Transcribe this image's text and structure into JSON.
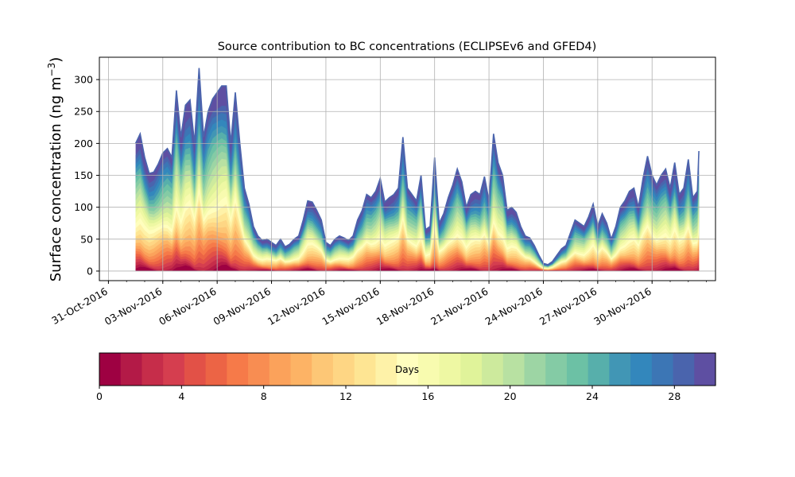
{
  "chart_data": {
    "type": "area",
    "title": "Source contribution to BC concentrations (ECLIPSEv6 and GFED4)",
    "ylabel": "Surface concentration (ng m",
    "ylabel_sup": "−3",
    "ylabel_close": ")",
    "xlabel": "",
    "ylim": [
      -15,
      335
    ],
    "xlim": [
      "2016-10-30T12:00",
      "2016-12-03T12:00"
    ],
    "y_ticks": [
      0,
      50,
      100,
      150,
      200,
      250,
      300
    ],
    "x_ticks": [
      "2016-10-31",
      "2016-11-03",
      "2016-11-06",
      "2016-11-09",
      "2016-11-12",
      "2016-11-15",
      "2016-11-18",
      "2016-11-21",
      "2016-11-24",
      "2016-11-27",
      "2016-11-30"
    ],
    "x_tick_labels": [
      "31-Oct-2016",
      "03-Nov-2016",
      "06-Nov-2016",
      "09-Nov-2016",
      "12-Nov-2016",
      "15-Nov-2016",
      "18-Nov-2016",
      "21-Nov-2016",
      "24-Nov-2016",
      "27-Nov-2016",
      "30-Nov-2016"
    ],
    "grid": true,
    "series": [
      {
        "values": [
          [
            "2016-11-01T12:00",
            200
          ],
          [
            "2016-11-01T18:00",
            215
          ],
          [
            "2016-11-02T00:00",
            178
          ],
          [
            "2016-11-02T06:00",
            153
          ],
          [
            "2016-11-02T12:00",
            155
          ],
          [
            "2016-11-02T18:00",
            168
          ],
          [
            "2016-11-03T00:00",
            185
          ],
          [
            "2016-11-03T06:00",
            192
          ],
          [
            "2016-11-03T12:00",
            178
          ],
          [
            "2016-11-03T18:00",
            283
          ],
          [
            "2016-11-04T00:00",
            210
          ],
          [
            "2016-11-04T06:00",
            260
          ],
          [
            "2016-11-04T12:00",
            268
          ],
          [
            "2016-11-04T18:00",
            200
          ],
          [
            "2016-11-05T00:00",
            318
          ],
          [
            "2016-11-05T06:00",
            210
          ],
          [
            "2016-11-05T12:00",
            250
          ],
          [
            "2016-11-05T18:00",
            270
          ],
          [
            "2016-11-06T00:00",
            280
          ],
          [
            "2016-11-06T06:00",
            290
          ],
          [
            "2016-11-06T12:00",
            290
          ],
          [
            "2016-11-06T18:00",
            200
          ],
          [
            "2016-11-07T00:00",
            280
          ],
          [
            "2016-11-07T06:00",
            200
          ],
          [
            "2016-11-07T12:00",
            130
          ],
          [
            "2016-11-07T18:00",
            105
          ],
          [
            "2016-11-08T00:00",
            70
          ],
          [
            "2016-11-08T06:00",
            55
          ],
          [
            "2016-11-08T12:00",
            48
          ],
          [
            "2016-11-08T18:00",
            50
          ],
          [
            "2016-11-09T00:00",
            45
          ],
          [
            "2016-11-09T06:00",
            40
          ],
          [
            "2016-11-09T12:00",
            50
          ],
          [
            "2016-11-09T18:00",
            38
          ],
          [
            "2016-11-10T00:00",
            42
          ],
          [
            "2016-11-10T06:00",
            50
          ],
          [
            "2016-11-10T12:00",
            55
          ],
          [
            "2016-11-10T18:00",
            80
          ],
          [
            "2016-11-11T00:00",
            110
          ],
          [
            "2016-11-11T06:00",
            108
          ],
          [
            "2016-11-11T12:00",
            95
          ],
          [
            "2016-11-11T18:00",
            80
          ],
          [
            "2016-11-12T00:00",
            45
          ],
          [
            "2016-11-12T06:00",
            40
          ],
          [
            "2016-11-12T12:00",
            50
          ],
          [
            "2016-11-12T18:00",
            55
          ],
          [
            "2016-11-13T00:00",
            52
          ],
          [
            "2016-11-13T06:00",
            48
          ],
          [
            "2016-11-13T12:00",
            55
          ],
          [
            "2016-11-13T18:00",
            80
          ],
          [
            "2016-11-14T00:00",
            95
          ],
          [
            "2016-11-14T06:00",
            120
          ],
          [
            "2016-11-14T12:00",
            115
          ],
          [
            "2016-11-14T18:00",
            125
          ],
          [
            "2016-11-15T00:00",
            145
          ],
          [
            "2016-11-15T06:00",
            108
          ],
          [
            "2016-11-15T12:00",
            115
          ],
          [
            "2016-11-15T18:00",
            120
          ],
          [
            "2016-11-16T00:00",
            130
          ],
          [
            "2016-11-16T06:00",
            210
          ],
          [
            "2016-11-16T12:00",
            130
          ],
          [
            "2016-11-16T18:00",
            120
          ],
          [
            "2016-11-17T00:00",
            110
          ],
          [
            "2016-11-17T06:00",
            150
          ],
          [
            "2016-11-17T12:00",
            65
          ],
          [
            "2016-11-17T18:00",
            70
          ],
          [
            "2016-11-18T00:00",
            178
          ],
          [
            "2016-11-18T06:00",
            75
          ],
          [
            "2016-11-18T12:00",
            90
          ],
          [
            "2016-11-18T18:00",
            115
          ],
          [
            "2016-11-19T00:00",
            135
          ],
          [
            "2016-11-19T06:00",
            160
          ],
          [
            "2016-11-19T12:00",
            140
          ],
          [
            "2016-11-19T18:00",
            100
          ],
          [
            "2016-11-20T00:00",
            120
          ],
          [
            "2016-11-20T06:00",
            125
          ],
          [
            "2016-11-20T12:00",
            120
          ],
          [
            "2016-11-20T18:00",
            148
          ],
          [
            "2016-11-21T00:00",
            110
          ],
          [
            "2016-11-21T06:00",
            215
          ],
          [
            "2016-11-21T12:00",
            170
          ],
          [
            "2016-11-21T18:00",
            150
          ],
          [
            "2016-11-22T00:00",
            95
          ],
          [
            "2016-11-22T06:00",
            100
          ],
          [
            "2016-11-22T12:00",
            92
          ],
          [
            "2016-11-22T18:00",
            70
          ],
          [
            "2016-11-23T00:00",
            55
          ],
          [
            "2016-11-23T06:00",
            52
          ],
          [
            "2016-11-23T12:00",
            40
          ],
          [
            "2016-11-23T18:00",
            25
          ],
          [
            "2016-11-24T00:00",
            12
          ],
          [
            "2016-11-24T06:00",
            10
          ],
          [
            "2016-11-24T12:00",
            15
          ],
          [
            "2016-11-24T18:00",
            25
          ],
          [
            "2016-11-25T00:00",
            35
          ],
          [
            "2016-11-25T06:00",
            40
          ],
          [
            "2016-11-25T12:00",
            60
          ],
          [
            "2016-11-25T18:00",
            80
          ],
          [
            "2016-11-26T00:00",
            75
          ],
          [
            "2016-11-26T06:00",
            70
          ],
          [
            "2016-11-26T12:00",
            85
          ],
          [
            "2016-11-26T18:00",
            105
          ],
          [
            "2016-11-27T00:00",
            70
          ],
          [
            "2016-11-27T06:00",
            90
          ],
          [
            "2016-11-27T12:00",
            75
          ],
          [
            "2016-11-27T18:00",
            50
          ],
          [
            "2016-11-28T00:00",
            70
          ],
          [
            "2016-11-28T06:00",
            100
          ],
          [
            "2016-11-28T12:00",
            110
          ],
          [
            "2016-11-28T18:00",
            125
          ],
          [
            "2016-11-29T00:00",
            130
          ],
          [
            "2016-11-29T06:00",
            100
          ],
          [
            "2016-11-29T12:00",
            145
          ],
          [
            "2016-11-29T18:00",
            180
          ],
          [
            "2016-11-30T00:00",
            150
          ],
          [
            "2016-11-30T06:00",
            135
          ],
          [
            "2016-11-30T12:00",
            150
          ],
          [
            "2016-11-30T18:00",
            160
          ],
          [
            "2016-12-01T00:00",
            130
          ],
          [
            "2016-12-01T06:00",
            170
          ],
          [
            "2016-12-01T12:00",
            120
          ],
          [
            "2016-12-01T18:00",
            130
          ],
          [
            "2016-12-02T00:00",
            175
          ],
          [
            "2016-12-02T06:00",
            115
          ],
          [
            "2016-12-02T12:00",
            125
          ],
          [
            "2016-12-02T14:00",
            188
          ]
        ]
      }
    ],
    "colorbar": {
      "label": "Days",
      "min": 0,
      "max": 30,
      "ticks": [
        0,
        4,
        8,
        12,
        16,
        20,
        24,
        28
      ],
      "colormap": "Spectral",
      "colors": [
        "#9e0142",
        "#b31a47",
        "#c62d4a",
        "#d53e4f",
        "#e25147",
        "#ec6445",
        "#f67a49",
        "#f88d52",
        "#fba25b",
        "#fdb365",
        "#fdc776",
        "#fed684",
        "#fee593",
        "#fef2a8",
        "#fffebe",
        "#f8fbaf",
        "#eef8a3",
        "#e0f39a",
        "#cdea9d",
        "#b8e1a2",
        "#9dd5a4",
        "#84cba5",
        "#6cc1a5",
        "#57afab",
        "#4196b5",
        "#3387bc",
        "#3c76b5",
        "#4a64ad",
        "#5e4fa2"
      ]
    }
  }
}
